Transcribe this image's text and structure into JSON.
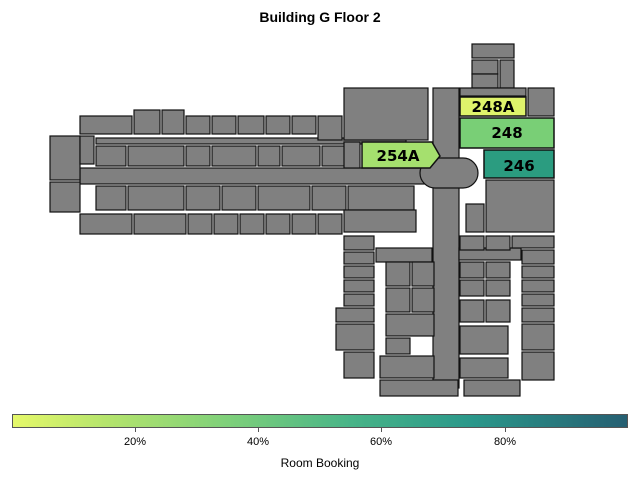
{
  "title": "Building G Floor 2",
  "rooms": [
    {
      "label": "248A",
      "value": 0.03,
      "color": "#dff36b"
    },
    {
      "label": "248",
      "value": 0.27,
      "color": "#79cf76"
    },
    {
      "label": "254A",
      "value": 0.18,
      "color": "#a5e06e"
    },
    {
      "label": "246",
      "value": 0.71,
      "color": "#2b9c80"
    }
  ],
  "colorbar": {
    "label": "Room Booking",
    "ticks": [
      "20%",
      "40%",
      "60%",
      "80%"
    ],
    "start_color": "#e5f86a",
    "end_color": "#265f72"
  }
}
